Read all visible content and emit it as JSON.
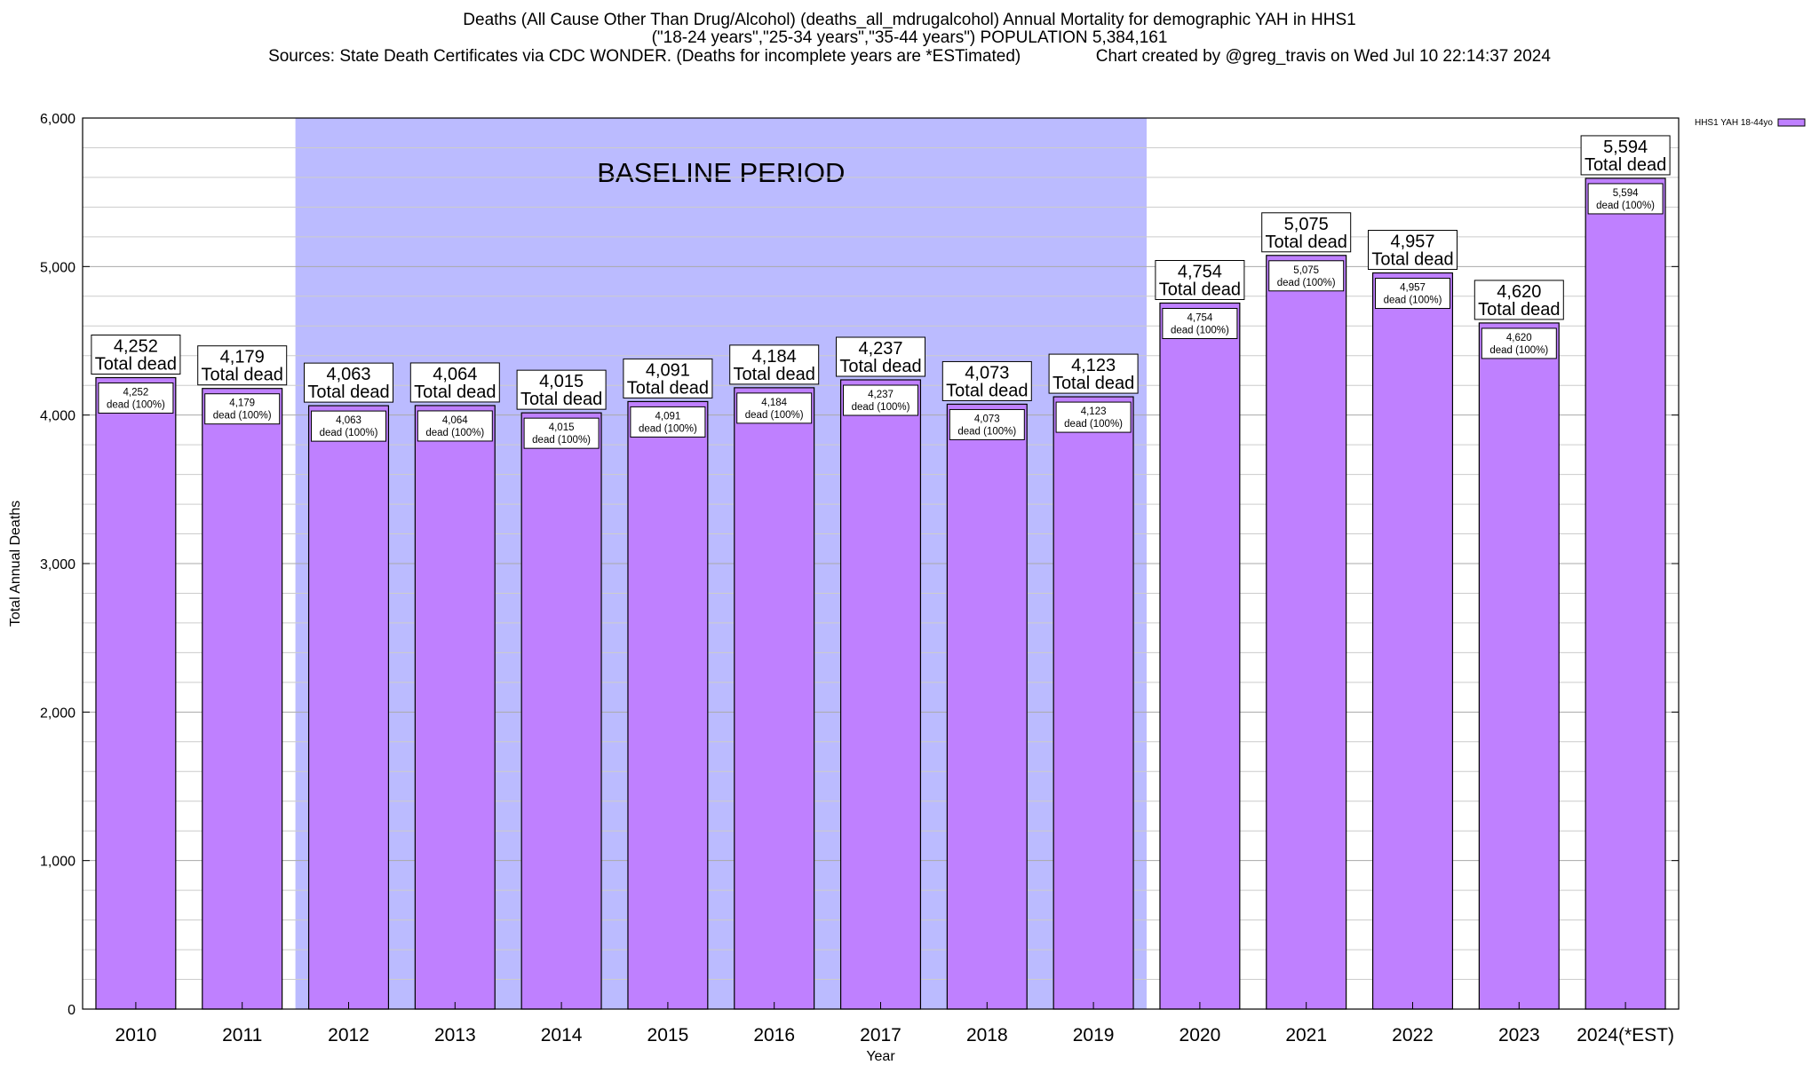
{
  "header": {
    "title_line_1": "Deaths (All Cause Other Than Drug/Alcohol) (deaths_all_mdrugalcohol) Annual Mortality for demographic YAH in HHS1",
    "title_line_2": "(\"18-24 years\",\"25-34 years\",\"35-44 years\") POPULATION 5,384,161",
    "title_line_3": "Sources: State Death Certificates via CDC WONDER. (Deaths for incomplete years are *ESTimated)                Chart created by @greg_travis on Wed Jul 10 22:14:37 2024"
  },
  "colors": {
    "bar_fill": "#bf80ff",
    "bar_stroke": "#000000",
    "baseline_band": "#bbbbff",
    "grid_major": "#aaaaaa",
    "grid_minor": "#cccccc",
    "axis": "#000000",
    "label_box_fill": "#ffffff"
  },
  "chart_data": {
    "type": "bar",
    "title": "Deaths (All Cause Other Than Drug/Alcohol) (deaths_all_mdrugalcohol) Annual Mortality for demographic YAH in HHS1",
    "xlabel": "Year",
    "ylabel": "Total Annual Deaths",
    "categories": [
      "2010",
      "2011",
      "2012",
      "2013",
      "2014",
      "2015",
      "2016",
      "2017",
      "2018",
      "2019",
      "2020",
      "2021",
      "2022",
      "2023",
      "2024(*EST)"
    ],
    "series": [
      {
        "name": "HHS1 YAH 18-44yo",
        "values": [
          4252,
          4179,
          4063,
          4064,
          4015,
          4091,
          4184,
          4237,
          4073,
          4123,
          4754,
          5075,
          4957,
          4620,
          5594
        ]
      }
    ],
    "value_labels": [
      "4,252",
      "4,179",
      "4,063",
      "4,064",
      "4,015",
      "4,091",
      "4,184",
      "4,237",
      "4,073",
      "4,123",
      "4,754",
      "5,075",
      "4,957",
      "4,620",
      "5,594"
    ],
    "total_label_suffix": "Total dead",
    "inner_label_suffix": "dead (100%)",
    "ylim": [
      0,
      6000
    ],
    "yticks": [
      0,
      1000,
      2000,
      3000,
      4000,
      5000,
      6000
    ],
    "ytick_labels": [
      "0",
      "1,000",
      "2,000",
      "3,000",
      "4,000",
      "5,000",
      "6,000"
    ],
    "minor_gridlines_per_major": 5,
    "baseline_period": {
      "label": "BASELINE PERIOD",
      "start_category": "2012",
      "end_category": "2019"
    },
    "legend": {
      "placement": "top-right",
      "entries": [
        "HHS1 YAH 18-44yo"
      ]
    },
    "grid": true
  }
}
